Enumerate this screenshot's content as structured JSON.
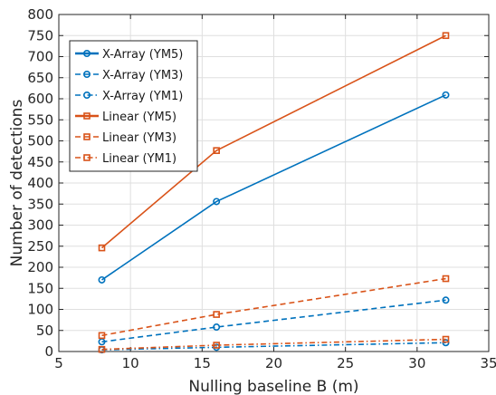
{
  "chart_data": {
    "type": "line",
    "title": "",
    "xlabel": "Nulling baseline B (m)",
    "ylabel": "Number of detections",
    "xlim": [
      5,
      35
    ],
    "ylim": [
      0,
      800
    ],
    "xticks": [
      5,
      10,
      15,
      20,
      25,
      30,
      35
    ],
    "yticks": [
      0,
      50,
      100,
      150,
      200,
      250,
      300,
      350,
      400,
      450,
      500,
      550,
      600,
      650,
      700,
      750,
      800
    ],
    "x": [
      8,
      16,
      32
    ],
    "grid": true,
    "legend_position": "top-left",
    "series": [
      {
        "name": "X-Array (YM5)",
        "values": [
          170,
          356,
          609
        ],
        "color": "#0072BD",
        "dash": "solid",
        "marker": "circle"
      },
      {
        "name": "X-Array (YM3)",
        "values": [
          23,
          58,
          122
        ],
        "color": "#0072BD",
        "dash": "dashed",
        "marker": "circle"
      },
      {
        "name": "X-Array (YM1)",
        "values": [
          4,
          10,
          21
        ],
        "color": "#0072BD",
        "dash": "dashdot",
        "marker": "circle"
      },
      {
        "name": "Linear (YM5)",
        "values": [
          246,
          477,
          750
        ],
        "color": "#D95319",
        "dash": "solid",
        "marker": "square"
      },
      {
        "name": "Linear (YM3)",
        "values": [
          38,
          88,
          173
        ],
        "color": "#D95319",
        "dash": "dashed",
        "marker": "square"
      },
      {
        "name": "Linear (YM1)",
        "values": [
          5,
          15,
          29
        ],
        "color": "#D95319",
        "dash": "dashdot",
        "marker": "square"
      }
    ]
  }
}
